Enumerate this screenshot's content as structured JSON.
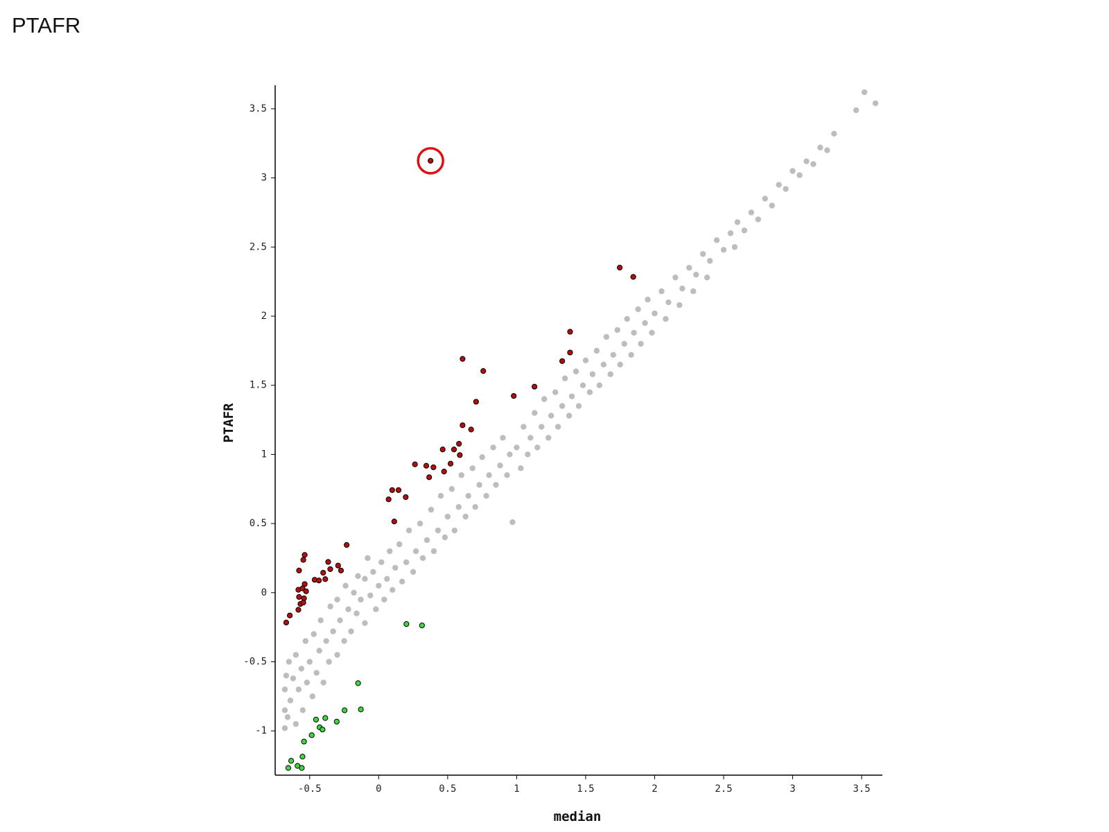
{
  "chart_data": {
    "type": "scatter",
    "title": "PTAFR",
    "x_label": "median",
    "y_label": "PTAFR",
    "xlim": [
      -0.75,
      3.65
    ],
    "ylim": [
      -1.32,
      3.67
    ],
    "xticks": [
      -0.5,
      0,
      0.5,
      1,
      1.5,
      2,
      2.5,
      3,
      3.5
    ],
    "yticks": [
      -1,
      -0.5,
      0,
      0.5,
      1,
      1.5,
      2,
      2.5,
      3,
      3.5
    ],
    "highlight": {
      "series": 1,
      "point": 0,
      "color": "#e01010"
    },
    "series": [
      {
        "color": "#bdbdbd",
        "x": [
          -0.68,
          -0.68,
          -0.68,
          -0.67,
          -0.66,
          -0.65,
          -0.64,
          -0.62,
          -0.6,
          -0.6,
          -0.58,
          -0.56,
          -0.55,
          -0.53,
          -0.52,
          -0.5,
          -0.48,
          -0.47,
          -0.45,
          -0.43,
          -0.42,
          -0.4,
          -0.38,
          -0.36,
          -0.35,
          -0.33,
          -0.3,
          -0.3,
          -0.28,
          -0.25,
          -0.24,
          -0.22,
          -0.2,
          -0.18,
          -0.16,
          -0.15,
          -0.13,
          -0.1,
          -0.1,
          -0.08,
          -0.06,
          -0.04,
          -0.02,
          0.0,
          0.02,
          0.04,
          0.06,
          0.08,
          0.1,
          0.12,
          0.15,
          0.17,
          0.2,
          0.22,
          0.25,
          0.27,
          0.3,
          0.32,
          0.35,
          0.38,
          0.4,
          0.43,
          0.45,
          0.48,
          0.5,
          0.53,
          0.55,
          0.58,
          0.6,
          0.63,
          0.65,
          0.68,
          0.7,
          0.73,
          0.75,
          0.78,
          0.8,
          0.83,
          0.85,
          0.88,
          0.9,
          0.93,
          0.95,
          0.97,
          1.0,
          1.03,
          1.05,
          1.08,
          1.1,
          1.13,
          1.15,
          1.18,
          1.2,
          1.23,
          1.25,
          1.28,
          1.3,
          1.33,
          1.35,
          1.38,
          1.4,
          1.43,
          1.45,
          1.48,
          1.5,
          1.53,
          1.55,
          1.58,
          1.6,
          1.63,
          1.65,
          1.68,
          1.7,
          1.73,
          1.75,
          1.78,
          1.8,
          1.83,
          1.85,
          1.88,
          1.9,
          1.93,
          1.95,
          1.98,
          2.0,
          2.05,
          2.08,
          2.1,
          2.15,
          2.18,
          2.2,
          2.25,
          2.28,
          2.3,
          2.35,
          2.38,
          2.4,
          2.45,
          2.5,
          2.55,
          2.58,
          2.6,
          2.65,
          2.7,
          2.75,
          2.8,
          2.85,
          2.9,
          2.95,
          3.0,
          3.05,
          3.1,
          3.15,
          3.2,
          3.25,
          3.3,
          3.46,
          3.52,
          3.6
        ],
        "y": [
          -0.98,
          -0.85,
          -0.7,
          -0.6,
          -0.9,
          -0.5,
          -0.78,
          -0.62,
          -0.95,
          -0.45,
          -0.7,
          -0.55,
          -0.85,
          -0.35,
          -0.65,
          -0.5,
          -0.75,
          -0.3,
          -0.58,
          -0.42,
          -0.2,
          -0.65,
          -0.35,
          -0.5,
          -0.1,
          -0.28,
          -0.45,
          -0.05,
          -0.2,
          -0.35,
          0.05,
          -0.12,
          -0.28,
          0.0,
          -0.15,
          0.12,
          -0.05,
          -0.22,
          0.1,
          0.25,
          -0.02,
          0.15,
          -0.12,
          0.05,
          0.22,
          -0.05,
          0.1,
          0.3,
          0.02,
          0.18,
          0.35,
          0.08,
          0.22,
          0.45,
          0.15,
          0.3,
          0.5,
          0.25,
          0.38,
          0.6,
          0.3,
          0.45,
          0.7,
          0.4,
          0.55,
          0.75,
          0.45,
          0.62,
          0.85,
          0.55,
          0.7,
          0.9,
          0.62,
          0.78,
          0.98,
          0.7,
          0.85,
          1.05,
          0.78,
          0.92,
          1.12,
          0.85,
          1.0,
          0.51,
          1.05,
          0.9,
          1.2,
          1.0,
          1.12,
          1.3,
          1.05,
          1.2,
          1.4,
          1.12,
          1.28,
          1.45,
          1.2,
          1.35,
          1.55,
          1.28,
          1.42,
          1.6,
          1.35,
          1.5,
          1.68,
          1.45,
          1.58,
          1.75,
          1.5,
          1.65,
          1.85,
          1.58,
          1.72,
          1.9,
          1.65,
          1.8,
          1.98,
          1.72,
          1.88,
          2.05,
          1.8,
          1.95,
          2.12,
          1.88,
          2.02,
          2.18,
          1.98,
          2.1,
          2.28,
          2.08,
          2.2,
          2.35,
          2.18,
          2.3,
          2.45,
          2.28,
          2.4,
          2.55,
          2.48,
          2.6,
          2.5,
          2.68,
          2.62,
          2.75,
          2.7,
          2.85,
          2.8,
          2.95,
          2.92,
          3.05,
          3.02,
          3.12,
          3.1,
          3.22,
          3.2,
          3.32,
          3.49,
          3.62,
          3.54
        ]
      },
      {
        "color": "#b01010",
        "x": [
          0.376,
          1.747,
          1.845,
          1.387,
          1.387,
          1.33,
          0.608,
          0.758,
          0.979,
          1.129,
          0.706,
          0.608,
          0.67,
          0.464,
          0.546,
          0.582,
          0.588,
          0.263,
          0.345,
          0.397,
          0.366,
          0.474,
          0.521,
          0.098,
          0.144,
          0.072,
          0.196,
          0.113,
          -0.232,
          -0.536,
          -0.546,
          -0.577,
          -0.366,
          -0.351,
          -0.294,
          -0.273,
          -0.402,
          -0.464,
          -0.433,
          -0.387,
          -0.536,
          -0.582,
          -0.552,
          -0.526,
          -0.577,
          -0.541,
          -0.567,
          -0.546,
          -0.582,
          -0.644,
          -0.67
        ],
        "y": [
          3.124,
          2.351,
          2.284,
          1.887,
          1.737,
          1.675,
          1.691,
          1.603,
          1.423,
          1.49,
          1.381,
          1.211,
          1.18,
          1.036,
          1.036,
          1.077,
          0.995,
          0.928,
          0.918,
          0.907,
          0.835,
          0.876,
          0.933,
          0.742,
          0.742,
          0.675,
          0.691,
          0.515,
          0.345,
          0.273,
          0.237,
          0.16,
          0.222,
          0.17,
          0.196,
          0.16,
          0.144,
          0.093,
          0.088,
          0.098,
          0.062,
          0.021,
          0.031,
          0.01,
          -0.031,
          -0.041,
          -0.082,
          -0.072,
          -0.124,
          -0.165,
          -0.216
        ]
      },
      {
        "color": "#3ed83e",
        "x": [
          0.201,
          0.314,
          -0.149,
          -0.129,
          -0.247,
          -0.304,
          -0.387,
          -0.454,
          -0.428,
          -0.407,
          -0.485,
          -0.541,
          -0.552,
          -0.634,
          -0.588,
          -0.557,
          -0.655
        ],
        "y": [
          -0.227,
          -0.237,
          -0.655,
          -0.845,
          -0.851,
          -0.933,
          -0.907,
          -0.918,
          -0.974,
          -0.99,
          -1.031,
          -1.077,
          -1.186,
          -1.216,
          -1.253,
          -1.268,
          -1.268
        ]
      }
    ]
  }
}
